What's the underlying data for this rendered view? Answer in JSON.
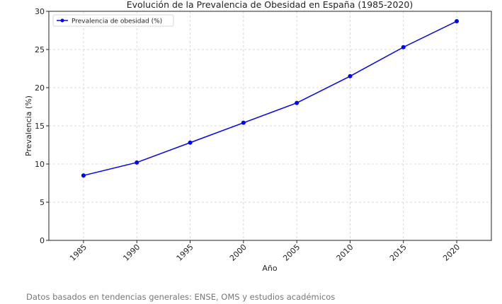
{
  "chart_data": {
    "type": "line",
    "title": "Evolución de la Prevalencia de Obesidad en España (1985-2020)",
    "xlabel": "Año",
    "ylabel": "Prevalencia (%)",
    "x": [
      1985,
      1990,
      1995,
      2000,
      2005,
      2010,
      2015,
      2020
    ],
    "xticks": [
      "1985",
      "1990",
      "1995",
      "2000",
      "2005",
      "2010",
      "2015",
      "2020"
    ],
    "yticks": [
      0,
      5,
      10,
      15,
      20,
      25,
      30
    ],
    "ylim": [
      0,
      30
    ],
    "grid": true,
    "legend_position": "top-left",
    "series": [
      {
        "name": "Prevalencia de obesidad (%)",
        "color": "#0000ff",
        "marker": "circle",
        "values": [
          8.5,
          10.2,
          12.8,
          15.4,
          18.0,
          21.5,
          25.3,
          28.7
        ]
      }
    ]
  },
  "source_note": "Datos basados en tendencias generales: ENSE, OMS y estudios académicos"
}
